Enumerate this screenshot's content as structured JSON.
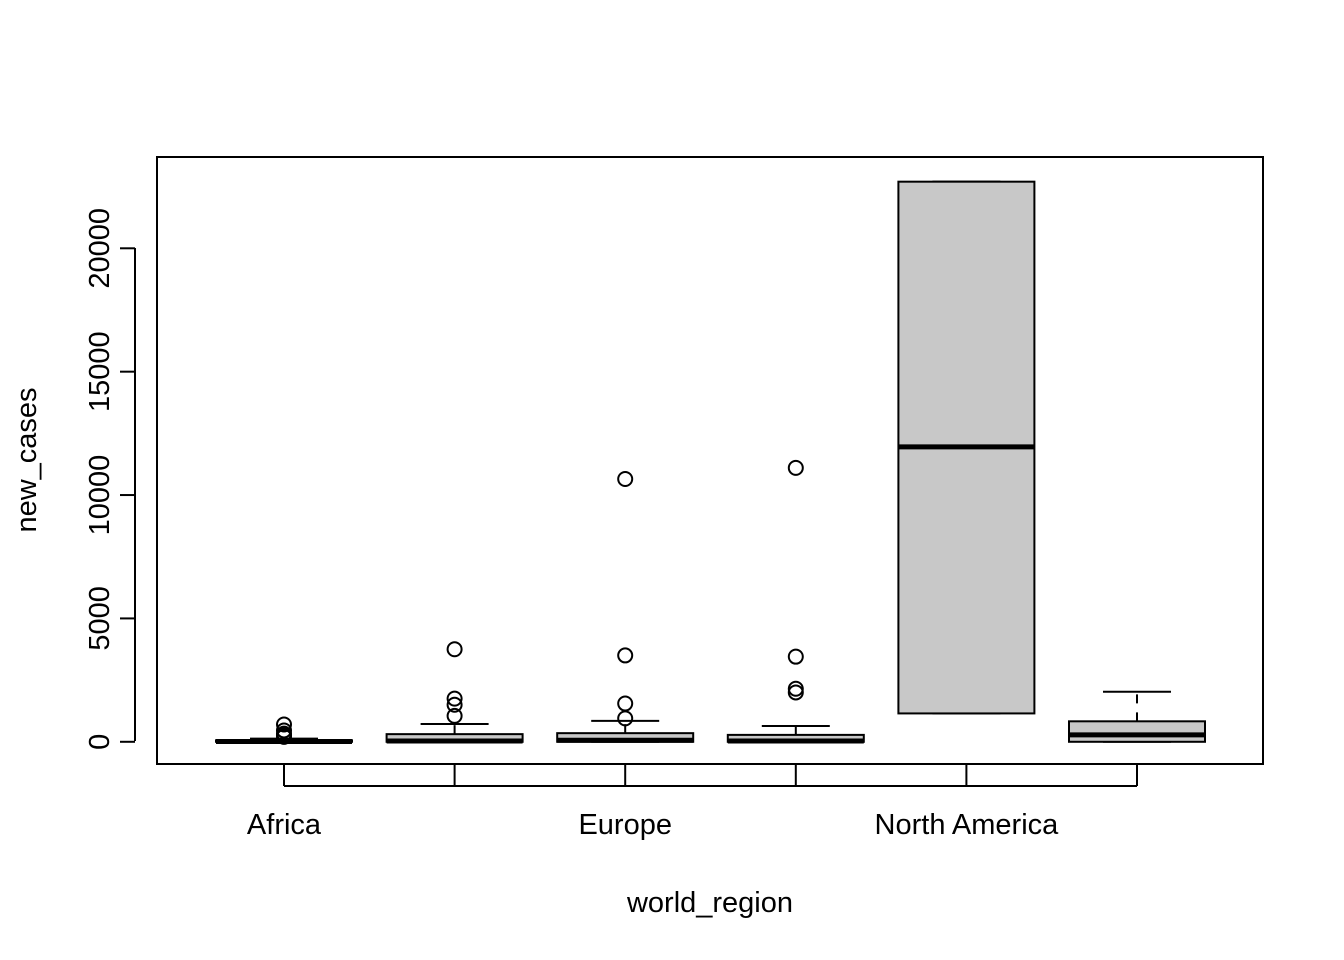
{
  "chart_data": {
    "type": "boxplot",
    "xlabel": "world_region",
    "ylabel": "new_cases",
    "categories": [
      "Africa",
      "",
      "Europe",
      "",
      "North America",
      ""
    ],
    "ylim": [
      -900,
      23700
    ],
    "yticks": [
      0,
      5000,
      10000,
      15000,
      20000
    ],
    "ytick_labels": [
      "0",
      "5000",
      "10000",
      "15000",
      "20000"
    ],
    "box_fill": "#c8c8c8",
    "boxes": [
      {
        "whisker_low": 0,
        "q1": 0,
        "median": 10,
        "q3": 60,
        "whisker_high": 130,
        "outliers": [
          200,
          260,
          330,
          460,
          700
        ]
      },
      {
        "whisker_low": 0,
        "q1": 0,
        "median": 30,
        "q3": 310,
        "whisker_high": 720,
        "outliers": [
          1050,
          1500,
          1750,
          3750
        ]
      },
      {
        "whisker_low": 0,
        "q1": 0,
        "median": 60,
        "q3": 350,
        "whisker_high": 850,
        "outliers": [
          950,
          1550,
          3500,
          10650
        ]
      },
      {
        "whisker_low": 0,
        "q1": 0,
        "median": 30,
        "q3": 280,
        "whisker_high": 640,
        "outliers": [
          2000,
          2150,
          3450,
          11100
        ]
      },
      {
        "whisker_low": 1150,
        "q1": 1150,
        "median": 11950,
        "q3": 22700,
        "whisker_high": 22700,
        "outliers": []
      },
      {
        "whisker_low": 0,
        "q1": 0,
        "median": 280,
        "q3": 830,
        "whisker_high": 2030,
        "outliers": []
      }
    ]
  }
}
